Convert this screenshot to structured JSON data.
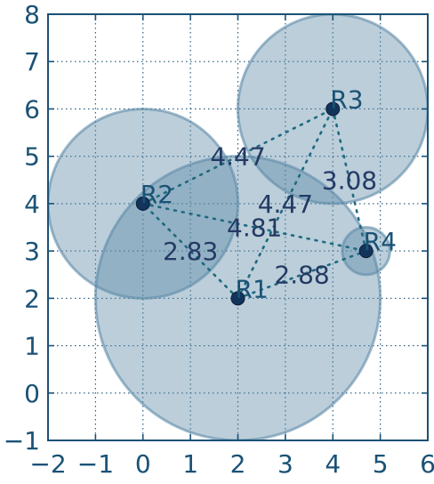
{
  "chart_data": {
    "type": "scatter",
    "title": "",
    "xlabel": "",
    "ylabel": "",
    "xlim": [
      -2,
      6
    ],
    "ylim": [
      -1,
      8
    ],
    "grid": true,
    "x_ticks": [
      "−2",
      "−1",
      "0",
      "1",
      "2",
      "3",
      "4",
      "5",
      "6"
    ],
    "y_ticks": [
      "−1",
      "0",
      "1",
      "2",
      "3",
      "4",
      "5",
      "6",
      "7",
      "8"
    ],
    "points": [
      {
        "label": "R1",
        "x": 2.0,
        "y": 2.0,
        "radius": 3.0
      },
      {
        "label": "R2",
        "x": 0.0,
        "y": 4.0,
        "radius": 2.0
      },
      {
        "label": "R3",
        "x": 4.0,
        "y": 6.0,
        "radius": 2.0
      },
      {
        "label": "R4",
        "x": 4.7,
        "y": 3.0,
        "radius": 0.5
      }
    ],
    "edges": [
      {
        "from": "R1",
        "to": "R2",
        "label": "2.83"
      },
      {
        "from": "R1",
        "to": "R3",
        "label": "4.47"
      },
      {
        "from": "R1",
        "to": "R4",
        "label": "2.88"
      },
      {
        "from": "R2",
        "to": "R3",
        "label": "4.47"
      },
      {
        "from": "R2",
        "to": "R4",
        "label": "4.81"
      },
      {
        "from": "R3",
        "to": "R4",
        "label": "3.08"
      }
    ],
    "colors": {
      "axis": "#1a5276",
      "grid": "#1a5276",
      "circle_fill": "#5d8aa8",
      "circle_stroke": "#5d8aa8",
      "point_fill": "#12335a",
      "edge": "#1f6a80",
      "label": "#1a5276",
      "edge_label": "#243a64"
    }
  }
}
